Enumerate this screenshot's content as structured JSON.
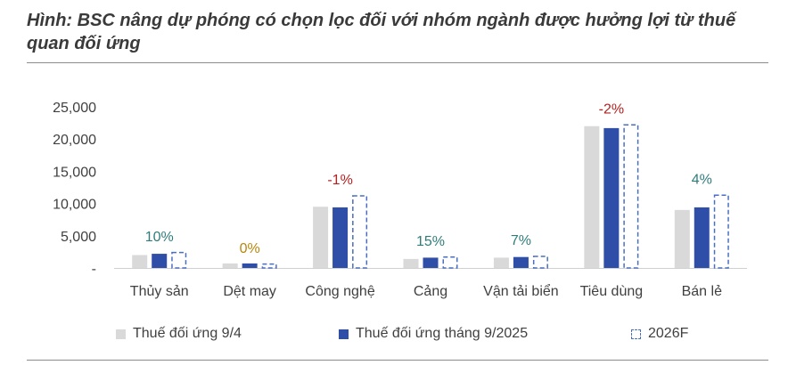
{
  "title": "Hình: BSC nâng dự phóng có chọn lọc đối với nhóm ngành được hưởng lợi từ thuế quan đối ứng",
  "colors": {
    "series1": "#d9d9d9",
    "series2": "#2f4ea8",
    "series3_border": "#4a6fc0",
    "label_positive": "#2e7d7b",
    "label_zero": "#b8860b",
    "label_negative": "#b22222"
  },
  "legend": [
    {
      "label": "Thuế đối ứng 9/4",
      "icon": "solid-gray-square"
    },
    {
      "label": "Thuế đối ứng tháng 9/2025",
      "icon": "solid-blue-square"
    },
    {
      "label": "2026F",
      "icon": "dashed-outline-square"
    }
  ],
  "chart_data": {
    "type": "bar",
    "categories": [
      "Thủy sản",
      "Dệt may",
      "Công nghệ",
      "Cảng",
      "Vận tải biển",
      "Tiêu dùng",
      "Bán lẻ"
    ],
    "series": [
      {
        "name": "Thuế đối ứng 9/4",
        "values": [
          2000,
          700,
          9500,
          1400,
          1600,
          22000,
          9000
        ]
      },
      {
        "name": "Thuế đối ứng tháng 9/2025",
        "values": [
          2200,
          700,
          9400,
          1600,
          1700,
          21700,
          9400
        ]
      },
      {
        "name": "2026F",
        "values": [
          2500,
          700,
          11300,
          1800,
          1900,
          22300,
          11400
        ]
      }
    ],
    "data_labels": [
      "10%",
      "0%",
      "-1%",
      "15%",
      "7%",
      "-2%",
      "4%"
    ],
    "y_ticks": [
      "-",
      "5,000",
      "10,000",
      "15,000",
      "20,000",
      "25,000"
    ],
    "ylim": [
      0,
      25000
    ],
    "grid": false,
    "legend_position": "bottom"
  }
}
